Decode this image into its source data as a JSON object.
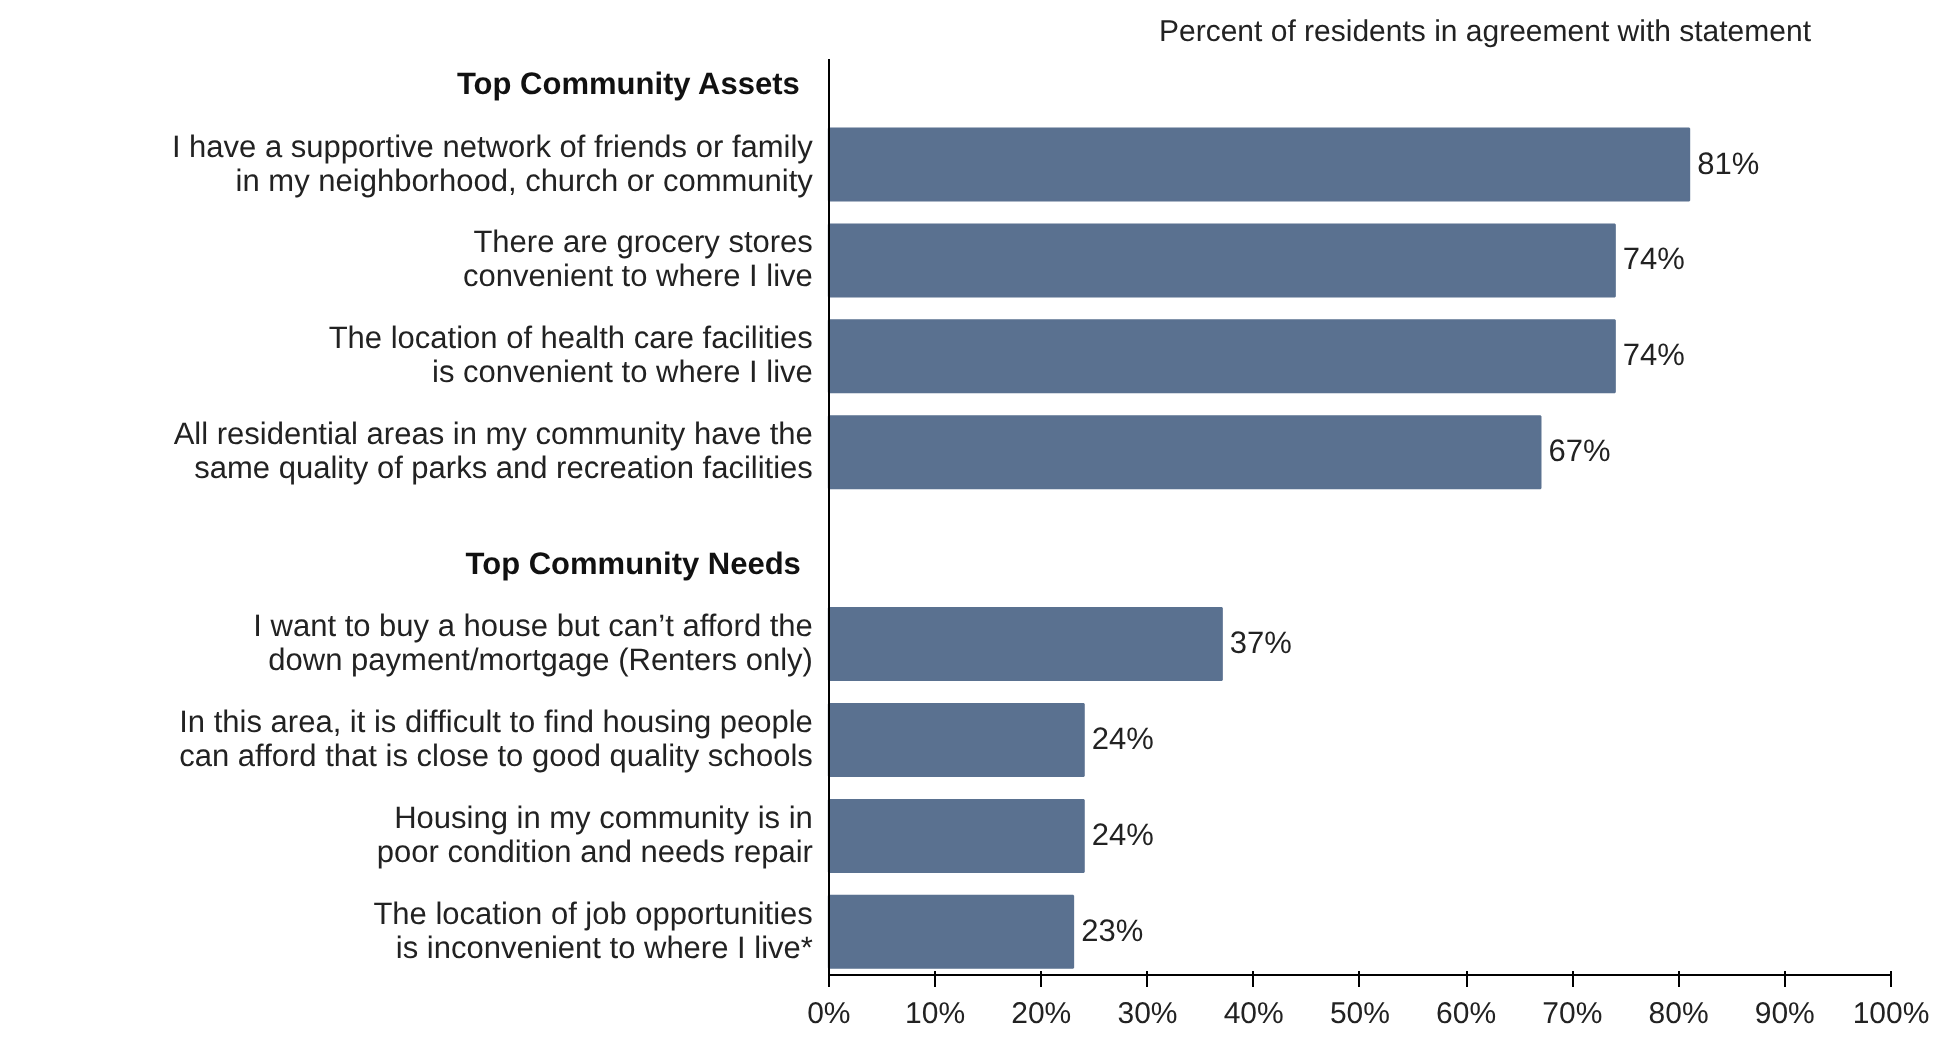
{
  "chart_data": {
    "type": "bar",
    "orientation": "horizontal",
    "title": "Percent of residents in agreement with statement",
    "categories": [
      null,
      "I have a supportive network of friends or family\nin my neighborhood, church or community",
      "There are grocery stores\nconvenient to where I live",
      "The location of health care facilities\nis convenient to where I live",
      "All residential areas in my community have the\nsame quality of parks and recreation facilities",
      null,
      "I want to buy a house but can’t afford the\ndown payment/mortgage (Renters only)",
      "In this area, it is difficult to find housing people\ncan afford that is close to good quality schools",
      "Housing in my community is in\npoor condition and needs repair",
      "The location of job opportunities\nis inconvenient to where I live*"
    ],
    "values": [
      null,
      81,
      74,
      74,
      67,
      null,
      37,
      24,
      24,
      23
    ],
    "value_labels": [
      null,
      "81%",
      "74%",
      "74%",
      "67%",
      null,
      "37%",
      "24%",
      "24%",
      "23%"
    ],
    "color": "#5a7190",
    "annotations": [
      "Top Community Assets",
      "Top Community Needs"
    ],
    "xlim": [
      0,
      100
    ],
    "xticks": [
      {
        "value": 0,
        "label": "0%"
      },
      {
        "value": 10,
        "label": "10%"
      },
      {
        "value": 20,
        "label": "20%"
      },
      {
        "value": 30,
        "label": "30%"
      },
      {
        "value": 40,
        "label": "40%"
      },
      {
        "value": 50,
        "label": "50%"
      },
      {
        "value": 60,
        "label": "60%"
      },
      {
        "value": 70,
        "label": "70%"
      },
      {
        "value": 80,
        "label": "80%"
      },
      {
        "value": 90,
        "label": "90%"
      },
      {
        "value": 100,
        "label": "100%"
      }
    ],
    "grid": false
  }
}
